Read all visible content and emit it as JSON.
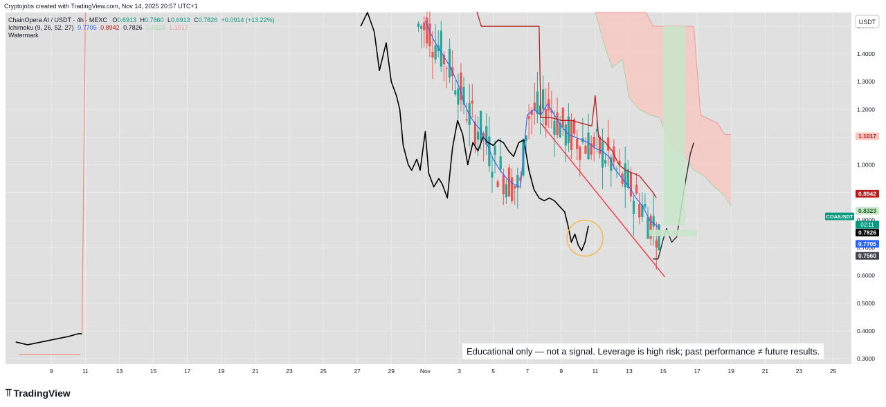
{
  "header": {
    "attribution": "Cryptojobs created with TradingView.com, Nov 14, 2025 20:57 UTC+1"
  },
  "legend": {
    "symbol": "ChainOpera AI / USDT · 4h · MEXC",
    "ohlc": [
      {
        "key": "O",
        "value": "0.6913"
      },
      {
        "key": "H",
        "value": "0.7860"
      },
      {
        "key": "L",
        "value": "0.6913"
      },
      {
        "key": "C",
        "value": "0.7826"
      }
    ],
    "change": "+0.0914 (+13.22%)",
    "ichimoku_label": "Ichimoku (9, 26, 52, 27)",
    "ichimoku_values": [
      "0.7705",
      "0.8942",
      "0.7826",
      "0.8323",
      "1.1017"
    ],
    "watermark_label": "Watermark"
  },
  "colors": {
    "conversion_line": "#2962ff",
    "base_line": "#b71c1c",
    "lagging_span": "#000000",
    "up_candle": "#26a69a",
    "down_candle": "#ef5350",
    "cloud_bearish": "#f8c6c1",
    "cloud_bullish": "#c8e6c9",
    "trendline": "#f23645",
    "highlight_circle": "#f5b841"
  },
  "chart_data": {
    "type": "line",
    "symbol": "COAIUSDT",
    "interval": "4h",
    "currency_label": "USDT",
    "y_axis_ticks": [
      "1.5000",
      "1.4000",
      "1.3000",
      "1.2000",
      "1.1000",
      "1.0000",
      "0.9000",
      "0.8000",
      "0.7000",
      "0.6000",
      "0.5000",
      "0.4000",
      "0.3000"
    ],
    "ylim": [
      0.28,
      1.55
    ],
    "x_axis_ticks": [
      {
        "label": "9",
        "d": 9
      },
      {
        "label": "11",
        "d": 11
      },
      {
        "label": "13",
        "d": 13
      },
      {
        "label": "15",
        "d": 15
      },
      {
        "label": "17",
        "d": 17
      },
      {
        "label": "19",
        "d": 19
      },
      {
        "label": "21",
        "d": 21
      },
      {
        "label": "23",
        "d": 23
      },
      {
        "label": "25",
        "d": 25
      },
      {
        "label": "27",
        "d": 27
      },
      {
        "label": "29",
        "d": 29
      },
      {
        "label": "Nov",
        "d": 31
      },
      {
        "label": "3",
        "d": 33
      },
      {
        "label": "5",
        "d": 35
      },
      {
        "label": "7",
        "d": 37
      },
      {
        "label": "9",
        "d": 39
      },
      {
        "label": "11",
        "d": 41
      },
      {
        "label": "13",
        "d": 43
      },
      {
        "label": "15",
        "d": 45
      },
      {
        "label": "17",
        "d": 47
      },
      {
        "label": "19",
        "d": 49
      },
      {
        "label": "21",
        "d": 51
      },
      {
        "label": "23",
        "d": 53
      },
      {
        "label": "25",
        "d": 55
      }
    ],
    "price_labels": [
      {
        "text": "1.1017",
        "value": 1.1017,
        "bg": "#f8c6c1",
        "fg": "#b71c1c"
      },
      {
        "text": "0.8942",
        "value": 0.8942,
        "bg": "#b71c1c",
        "fg": "#ffffff"
      },
      {
        "text": "0.8323",
        "value": 0.8323,
        "bg": "#c8e6c9",
        "fg": "#1b5e20"
      },
      {
        "text": "0.7826",
        "value": 0.7826,
        "bg": "#089981",
        "fg": "#ffffff"
      },
      {
        "text": "0.7826",
        "value": 0.7826,
        "bg": "#000000",
        "fg": "#ffffff"
      },
      {
        "text": "0.7705",
        "value": 0.7705,
        "bg": "#2962ff",
        "fg": "#ffffff"
      },
      {
        "text": "0.7560",
        "value": 0.756,
        "bg": "#434651",
        "fg": "#ffffff"
      }
    ],
    "current_price": {
      "ticker": "COAIUSDT",
      "price": "0.7826",
      "countdown": "02:11"
    },
    "series": [
      {
        "key": "lagging_span",
        "points": [
          [
            6.9,
            0.36
          ],
          [
            7.6,
            0.35
          ],
          [
            8.4,
            0.36
          ],
          [
            9.2,
            0.37
          ],
          [
            10.0,
            0.38
          ],
          [
            10.6,
            0.39
          ],
          [
            10.8,
            0.39
          ]
        ]
      },
      {
        "key": "lagging_span",
        "points": [
          [
            27.2,
            1.5
          ],
          [
            27.6,
            1.55
          ],
          [
            28.0,
            1.48
          ],
          [
            28.3,
            1.34
          ],
          [
            28.7,
            1.44
          ],
          [
            29.0,
            1.3
          ],
          [
            29.3,
            1.25
          ],
          [
            29.5,
            1.2
          ],
          [
            29.7,
            1.07
          ],
          [
            30.0,
            1.0
          ],
          [
            30.2,
            0.98
          ],
          [
            30.5,
            1.02
          ],
          [
            30.7,
            0.98
          ],
          [
            31.0,
            1.12
          ],
          [
            31.2,
            0.97
          ],
          [
            31.5,
            0.92
          ],
          [
            31.8,
            0.95
          ],
          [
            32.0,
            0.93
          ],
          [
            32.3,
            0.88
          ],
          [
            32.6,
            1.06
          ],
          [
            32.9,
            1.16
          ],
          [
            33.2,
            1.11
          ],
          [
            33.5,
            1.0
          ],
          [
            33.8,
            1.08
          ],
          [
            34.1,
            1.05
          ],
          [
            34.4,
            1.1
          ],
          [
            34.7,
            1.08
          ],
          [
            35.0,
            1.07
          ],
          [
            35.3,
            1.09
          ],
          [
            35.6,
            1.08
          ],
          [
            35.9,
            1.05
          ],
          [
            36.2,
            1.03
          ],
          [
            36.5,
            1.08
          ],
          [
            36.8,
            1.09
          ],
          [
            37.1,
            0.98
          ],
          [
            37.4,
            0.91
          ],
          [
            37.7,
            0.88
          ],
          [
            38.0,
            0.87
          ],
          [
            38.3,
            0.88
          ],
          [
            38.6,
            0.87
          ],
          [
            38.9,
            0.85
          ],
          [
            39.2,
            0.83
          ],
          [
            39.4,
            0.78
          ],
          [
            39.6,
            0.72
          ],
          [
            39.8,
            0.75
          ],
          [
            40.0,
            0.71
          ],
          [
            40.2,
            0.69
          ],
          [
            40.4,
            0.72
          ],
          [
            40.6,
            0.78
          ]
        ]
      },
      {
        "key": "conversion_line",
        "points": [
          [
            31.0,
            1.52
          ],
          [
            31.5,
            1.45
          ],
          [
            32.0,
            1.4
          ],
          [
            32.5,
            1.35
          ],
          [
            33.0,
            1.28
          ],
          [
            33.3,
            1.22
          ],
          [
            33.6,
            1.18
          ],
          [
            33.9,
            1.15
          ],
          [
            34.2,
            1.13
          ],
          [
            34.6,
            1.08
          ],
          [
            35.0,
            1.02
          ],
          [
            35.4,
            0.98
          ],
          [
            35.8,
            0.95
          ],
          [
            36.2,
            0.93
          ],
          [
            36.6,
            0.92
          ],
          [
            37.0,
            1.18
          ],
          [
            37.4,
            1.2
          ],
          [
            37.8,
            1.18
          ],
          [
            38.2,
            1.22
          ],
          [
            38.6,
            1.18
          ],
          [
            39.0,
            1.14
          ],
          [
            39.4,
            1.11
          ],
          [
            39.8,
            1.1
          ],
          [
            40.2,
            1.09
          ],
          [
            40.6,
            1.08
          ],
          [
            41.0,
            1.06
          ],
          [
            41.4,
            1.05
          ],
          [
            41.8,
            1.03
          ],
          [
            42.2,
            0.98
          ],
          [
            42.6,
            0.95
          ],
          [
            43.0,
            0.92
          ],
          [
            43.4,
            0.88
          ],
          [
            43.8,
            0.85
          ],
          [
            44.2,
            0.8
          ],
          [
            44.6,
            0.78
          ],
          [
            44.8,
            0.77
          ]
        ]
      },
      {
        "key": "base_line",
        "points": [
          [
            34.0,
            1.56
          ],
          [
            34.3,
            1.5
          ],
          [
            34.9,
            1.5
          ],
          [
            35.5,
            1.5
          ],
          [
            36.1,
            1.5
          ],
          [
            36.7,
            1.5
          ],
          [
            37.3,
            1.5
          ],
          [
            37.7,
            1.5
          ],
          [
            37.8,
            1.17
          ],
          [
            38.4,
            1.17
          ],
          [
            39.0,
            1.16
          ],
          [
            39.6,
            1.16
          ],
          [
            40.2,
            1.15
          ],
          [
            40.8,
            1.14
          ],
          [
            41.0,
            1.25
          ],
          [
            41.2,
            1.1
          ],
          [
            41.6,
            1.08
          ],
          [
            42.0,
            1.05
          ],
          [
            42.4,
            1.0
          ],
          [
            42.8,
            0.98
          ],
          [
            43.2,
            0.97
          ],
          [
            43.6,
            0.96
          ],
          [
            44.0,
            0.93
          ],
          [
            44.4,
            0.9
          ],
          [
            44.6,
            0.88
          ]
        ]
      },
      {
        "key": "price_projection",
        "points": [
          [
            44.4,
            0.66
          ],
          [
            44.7,
            0.66
          ],
          [
            45.0,
            0.73
          ],
          [
            45.2,
            0.77
          ],
          [
            45.5,
            0.72
          ],
          [
            45.8,
            0.74
          ],
          [
            46.2,
            0.9
          ],
          [
            46.6,
            1.04
          ],
          [
            46.8,
            1.08
          ]
        ]
      }
    ]
  },
  "disclaimer": "Educational only — not a signal. Leverage is high risk; past performance ≠ future results.",
  "footer": {
    "logo_text": "TradingView"
  }
}
